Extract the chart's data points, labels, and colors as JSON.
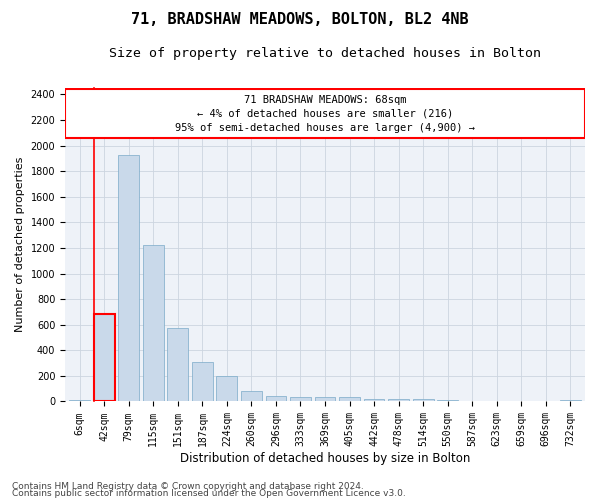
{
  "title": "71, BRADSHAW MEADOWS, BOLTON, BL2 4NB",
  "subtitle": "Size of property relative to detached houses in Bolton",
  "xlabel": "Distribution of detached houses by size in Bolton",
  "ylabel": "Number of detached properties",
  "bar_color": "#c9d9ea",
  "bar_edge_color": "#7aaac8",
  "grid_color": "#ccd5e0",
  "bg_color": "#eef2f8",
  "categories": [
    "6sqm",
    "42sqm",
    "79sqm",
    "115sqm",
    "151sqm",
    "187sqm",
    "224sqm",
    "260sqm",
    "296sqm",
    "333sqm",
    "369sqm",
    "405sqm",
    "442sqm",
    "478sqm",
    "514sqm",
    "550sqm",
    "587sqm",
    "623sqm",
    "659sqm",
    "696sqm",
    "732sqm"
  ],
  "values": [
    12,
    680,
    1930,
    1220,
    575,
    305,
    200,
    80,
    45,
    38,
    35,
    32,
    22,
    18,
    18,
    12,
    5,
    3,
    2,
    2,
    12
  ],
  "highlighted_bin_index": 1,
  "annotation_text": "71 BRADSHAW MEADOWS: 68sqm\n← 4% of detached houses are smaller (216)\n95% of semi-detached houses are larger (4,900) →",
  "ylim": [
    0,
    2450
  ],
  "yticks": [
    0,
    200,
    400,
    600,
    800,
    1000,
    1200,
    1400,
    1600,
    1800,
    2000,
    2200,
    2400
  ],
  "footer_line1": "Contains HM Land Registry data © Crown copyright and database right 2024.",
  "footer_line2": "Contains public sector information licensed under the Open Government Licence v3.0.",
  "title_fontsize": 11,
  "subtitle_fontsize": 9.5,
  "axis_label_fontsize": 8,
  "tick_fontsize": 7,
  "annotation_fontsize": 7.5,
  "footer_fontsize": 6.5
}
